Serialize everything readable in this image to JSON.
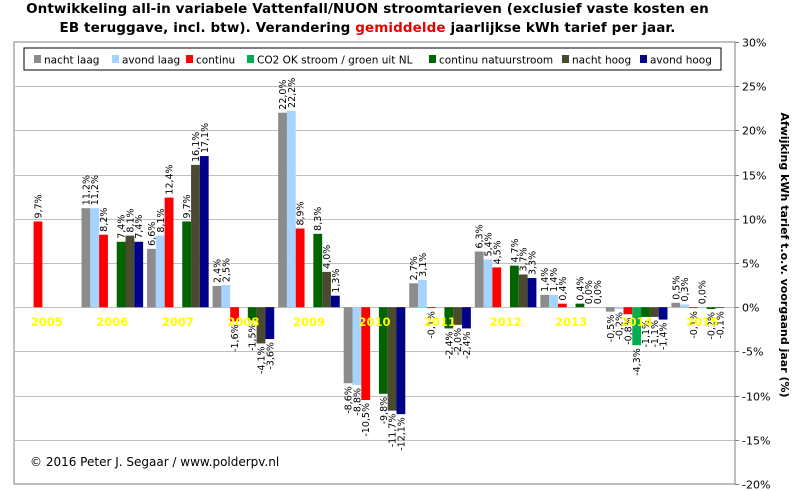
{
  "title": {
    "line1": "Ontwikkeling  all-in variabele Vattenfall/NUON  stroomtarieven (exclusief vaste kosten en",
    "line2_pre": "EB teruggave, incl. btw). Verandering ",
    "line2_highlight": "gemiddelde",
    "line2_post": " jaarlijkse kWh tarief per jaar."
  },
  "credit": "© 2016 Peter J. Segaar / www.polderpv.nl",
  "chart_data": {
    "type": "bar",
    "title": "Ontwikkeling  all-in variabele Vattenfall/NUON  stroomtarieven (exclusief vaste kosten en EB teruggave, incl. btw). Verandering gemiddelde jaarlijkse kWh tarief per jaar.",
    "ylabel": "Afwijking kWh tarief t.o.v. voorgaand jaar (%)",
    "xlabel": "",
    "ylim": [
      -20,
      30
    ],
    "yticks": [
      -20,
      -15,
      -10,
      -5,
      0,
      5,
      10,
      15,
      20,
      25,
      30
    ],
    "ytick_labels": [
      "-20%",
      "-15%",
      "-10%",
      "-5%",
      "0%",
      "5%",
      "10%",
      "15%",
      "20%",
      "25%",
      "30%"
    ],
    "y_axis_side": "right",
    "grid": true,
    "legend_position": "top",
    "categories": [
      "2005",
      "2006",
      "2007",
      "2008",
      "2009",
      "2010",
      "2011",
      "2012",
      "2013",
      "2014",
      "2015"
    ],
    "series": [
      {
        "name": "nacht laag",
        "color": "#8c8c8c",
        "values": [
          null,
          11.2,
          6.6,
          2.4,
          22.0,
          -8.6,
          2.7,
          6.3,
          1.4,
          -0.5,
          0.5
        ],
        "labels": [
          "",
          "11,2%",
          "6,6%",
          "2,4%",
          "22,0%",
          "-8,6%",
          "2,7%",
          "6,3%",
          "1,4%",
          "-0,5%",
          "0,5%"
        ]
      },
      {
        "name": "avond laag",
        "color": "#a6d3ff",
        "values": [
          null,
          11.2,
          8.1,
          2.5,
          22.2,
          -8.8,
          3.1,
          5.4,
          1.4,
          -0.2,
          0.3
        ],
        "labels": [
          "",
          "11,2%",
          "8,1%",
          "2,5%",
          "22,2%",
          "-8,8%",
          "3,1%",
          "5,4%",
          "1,4%",
          "-0,2%",
          "0,3%"
        ]
      },
      {
        "name": "continu",
        "color": "#ff0000",
        "values": [
          9.7,
          8.2,
          12.4,
          -1.6,
          8.9,
          -10.5,
          -0.1,
          4.5,
          0.4,
          -0.8,
          -0.1
        ],
        "labels": [
          "9,7%",
          "8,2%",
          "12,4%",
          "-1,6%",
          "8,9%",
          "-10,5%",
          "-0,1%",
          "4,5%",
          "0,4%",
          "-0,8%",
          "-0,1%"
        ]
      },
      {
        "name": "CO2 OK stroom / groen uit NL",
        "color": "#00b050",
        "values": [
          null,
          null,
          null,
          null,
          null,
          null,
          null,
          null,
          null,
          -4.3,
          0.0
        ],
        "labels": [
          "",
          "",
          "",
          "",
          "",
          "",
          "",
          "",
          "",
          "-4,3%",
          "0,0%"
        ]
      },
      {
        "name": "continu natuurstroom",
        "color": "#006400",
        "values": [
          null,
          7.4,
          9.7,
          -1.5,
          8.3,
          -9.8,
          -2.4,
          4.7,
          0.4,
          -1.1,
          -0.2
        ],
        "labels": [
          "",
          "7,4%",
          "9,7%",
          "-1,5%",
          "8,3%",
          "-9,8%",
          "-2,4%",
          "4,7%",
          "0,4%",
          "-1,1%",
          "-0,2%"
        ]
      },
      {
        "name": "nacht hoog",
        "color": "#4a4a30",
        "values": [
          null,
          8.1,
          16.1,
          -4.1,
          4.0,
          -11.7,
          -2.0,
          3.7,
          0.0,
          -1.1,
          -0.1
        ],
        "labels": [
          "",
          "8,1%",
          "16,1%",
          "-4,1%",
          "4,0%",
          "-11,7%",
          "-2,0%",
          "3,7%",
          "0,0%",
          "-1,1%",
          "-0,1%"
        ]
      },
      {
        "name": "avond hoog",
        "color": "#00008b",
        "values": [
          null,
          7.4,
          17.1,
          -3.6,
          1.3,
          -12.1,
          -2.4,
          3.3,
          0.0,
          -1.4,
          null
        ],
        "labels": [
          "",
          "7,4%",
          "17,1%",
          "-3,6%",
          "1,3%",
          "-12,1%",
          "-2,4%",
          "3,3%",
          "0,0%",
          "-1,4%",
          ""
        ]
      }
    ]
  }
}
